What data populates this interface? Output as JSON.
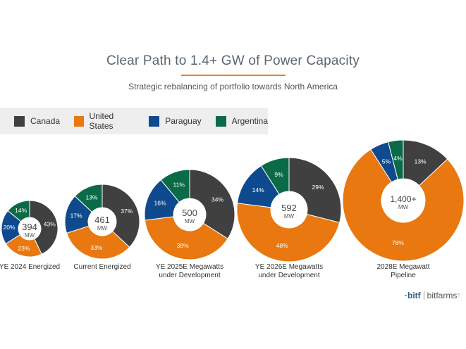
{
  "title": "Clear Path to 1.4+ GW of Power Capacity",
  "subtitle": "Strategic rebalancing of portfolio towards North America",
  "legend": [
    {
      "label": "Canada",
      "color": "#404040"
    },
    {
      "label": "United States",
      "color": "#e8780f"
    },
    {
      "label": "Paraguay",
      "color": "#104a8e"
    },
    {
      "label": "Argentina",
      "color": "#0b6b47"
    }
  ],
  "logo": {
    "mark": "·bitf",
    "name": "bitfarms"
  },
  "page_number": "7",
  "chart_data": {
    "type": "pie",
    "variant": "donut",
    "unit": "MW",
    "series_names": [
      "Canada",
      "United States",
      "Paraguay",
      "Argentina"
    ],
    "colors": [
      "#404040",
      "#e8780f",
      "#104a8e",
      "#0b6b47"
    ],
    "charts": [
      {
        "label_lines": [
          "YE 2024 Energized"
        ],
        "total": "394",
        "unit": "MW",
        "shares": [
          43,
          23,
          20,
          14
        ],
        "share_labels": [
          "43%",
          "23%",
          "20%",
          "14%"
        ]
      },
      {
        "label_lines": [
          "Current Energized"
        ],
        "total": "461",
        "unit": "MW",
        "shares": [
          37,
          33,
          17,
          13
        ],
        "share_labels": [
          "37%",
          "33%",
          "17%",
          "13%"
        ]
      },
      {
        "label_lines": [
          "YE 2025E Megawatts",
          "under Development"
        ],
        "total": "500",
        "unit": "MW",
        "shares": [
          34,
          39,
          16,
          11
        ],
        "share_labels": [
          "34%",
          "39%",
          "16%",
          "11%"
        ]
      },
      {
        "label_lines": [
          "YE 2026E Megawatts",
          "under Development"
        ],
        "total": "592",
        "unit": "MW",
        "shares": [
          29,
          48,
          14,
          9
        ],
        "share_labels": [
          "29%",
          "48%",
          "14%",
          "9%"
        ]
      },
      {
        "label_lines": [
          "2028E Megawatt",
          "Pipeline"
        ],
        "total": "1,400+",
        "unit": "MW",
        "shares": [
          13,
          78,
          5,
          4
        ],
        "share_labels": [
          "13%",
          "78%",
          "5%",
          "4%"
        ]
      }
    ]
  }
}
